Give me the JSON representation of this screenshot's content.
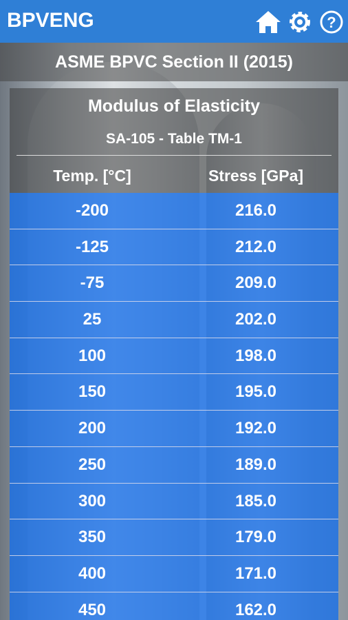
{
  "header": {
    "title": "BPVENG"
  },
  "section": "ASME BPVC Section II (2015)",
  "table": {
    "title": "Modulus of Elasticity",
    "subtitle": "SA-105 - Table TM-1",
    "columns": [
      "Temp. [°C]",
      "Stress [GPa]"
    ],
    "rows": [
      [
        "-200",
        "216.0"
      ],
      [
        "-125",
        "212.0"
      ],
      [
        "-75",
        "209.0"
      ],
      [
        "25",
        "202.0"
      ],
      [
        "100",
        "198.0"
      ],
      [
        "150",
        "195.0"
      ],
      [
        "200",
        "192.0"
      ],
      [
        "250",
        "189.0"
      ],
      [
        "300",
        "185.0"
      ],
      [
        "350",
        "179.0"
      ],
      [
        "400",
        "171.0"
      ],
      [
        "450",
        "162.0"
      ]
    ]
  }
}
